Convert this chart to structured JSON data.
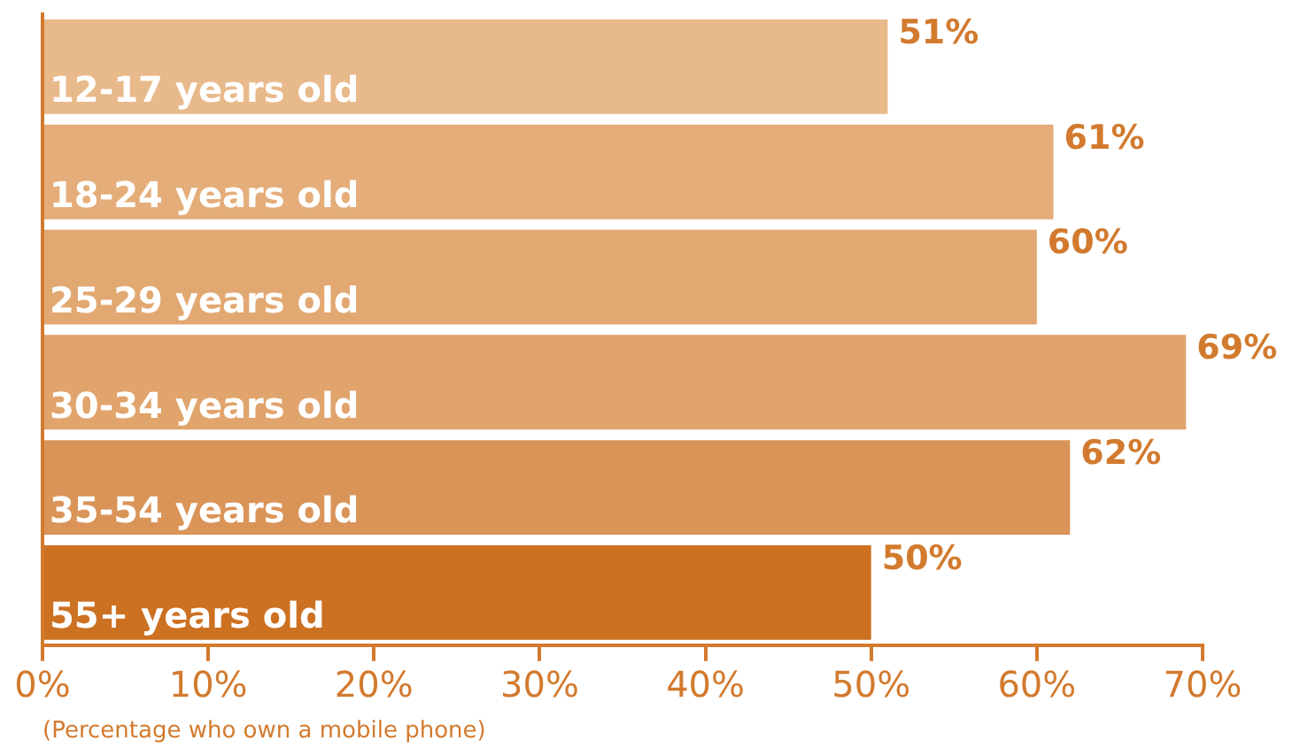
{
  "chart_data": {
    "type": "bar",
    "orientation": "horizontal",
    "categories": [
      "12-17 years old",
      "18-24 years old",
      "25-29 years old",
      "30-34 years old",
      "35-54 years old",
      "55+ years old"
    ],
    "values": [
      51,
      61,
      60,
      69,
      62,
      50
    ],
    "colors": [
      "#e8b98a",
      "#e4ad7a",
      "#e2a872",
      "#e0a46c",
      "#da9458",
      "#cc7122"
    ],
    "xlabel": "(Percentage who own a mobile phone)",
    "xlim": [
      0,
      70
    ],
    "xticks": [
      {
        "value": 0,
        "label": "0%"
      },
      {
        "value": 10,
        "label": "10%"
      },
      {
        "value": 20,
        "label": "20%"
      },
      {
        "value": 30,
        "label": "30%"
      },
      {
        "value": 40,
        "label": "40%"
      },
      {
        "value": 50,
        "label": "50%"
      },
      {
        "value": 60,
        "label": "60%"
      },
      {
        "value": 70,
        "label": "70%"
      }
    ],
    "value_labels": [
      "51%",
      "61%",
      "60%",
      "69%",
      "62%",
      "50%"
    ],
    "tick_labels": "x",
    "grid": false,
    "legend": false
  }
}
